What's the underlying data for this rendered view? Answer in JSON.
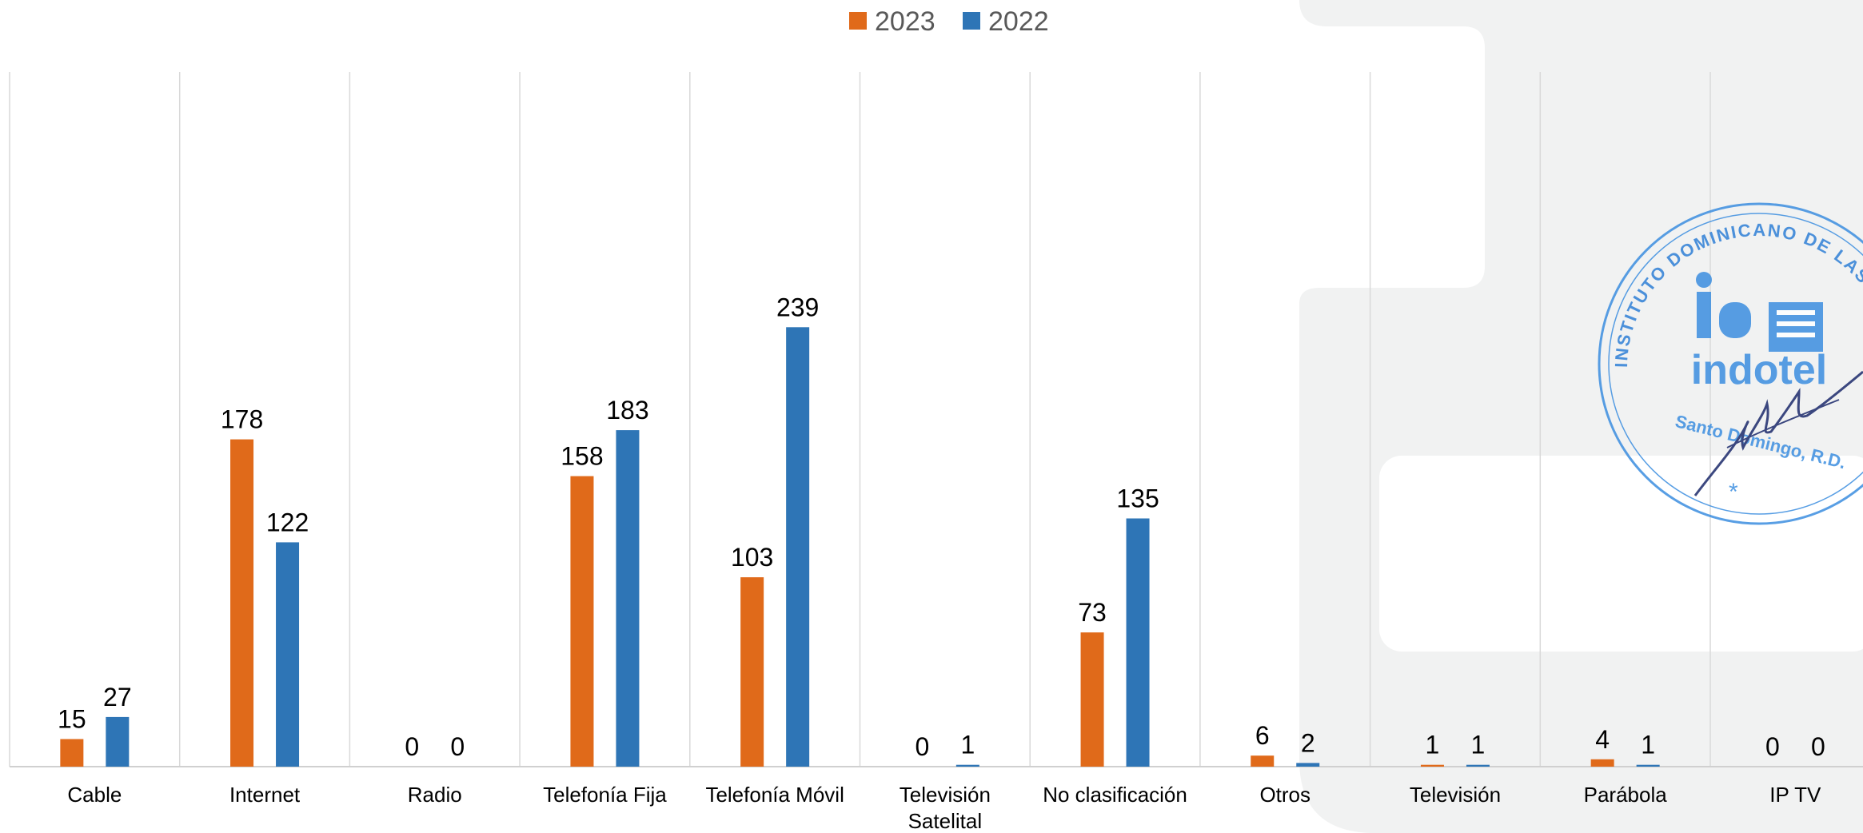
{
  "chart_data": {
    "type": "bar",
    "categories": [
      "Cable",
      "Internet",
      "Radio",
      "Telefonía Fija",
      "Telefonía Móvil",
      "Televisión Satelital",
      "No clasificación",
      "Otros",
      "Televisión",
      "Parábola",
      "IP TV"
    ],
    "category_lines": [
      [
        "Cable"
      ],
      [
        "Internet"
      ],
      [
        "Radio"
      ],
      [
        "Telefonía Fija"
      ],
      [
        "Telefonía Móvil"
      ],
      [
        "Televisión",
        "Satelital"
      ],
      [
        "No clasificación"
      ],
      [
        "Otros"
      ],
      [
        "Televisión"
      ],
      [
        "Parábola"
      ],
      [
        "IP TV"
      ]
    ],
    "series": [
      {
        "name": "2023",
        "color": "#e06a1a",
        "values": [
          15,
          178,
          0,
          158,
          103,
          0,
          73,
          6,
          1,
          4,
          0
        ]
      },
      {
        "name": "2022",
        "color": "#2e75b6",
        "values": [
          27,
          122,
          0,
          183,
          239,
          1,
          135,
          2,
          1,
          1,
          0
        ]
      }
    ],
    "ylim": [
      0,
      270
    ],
    "legend_position": "top-center",
    "grid": "vertical separators"
  },
  "stamp": {
    "ring_text_top": "INSTITUTO DOMINICANO DE LAS TELECOMUNICACIONES",
    "logo_text": "indotel",
    "city_text": "Santo Domingo, R.D."
  }
}
